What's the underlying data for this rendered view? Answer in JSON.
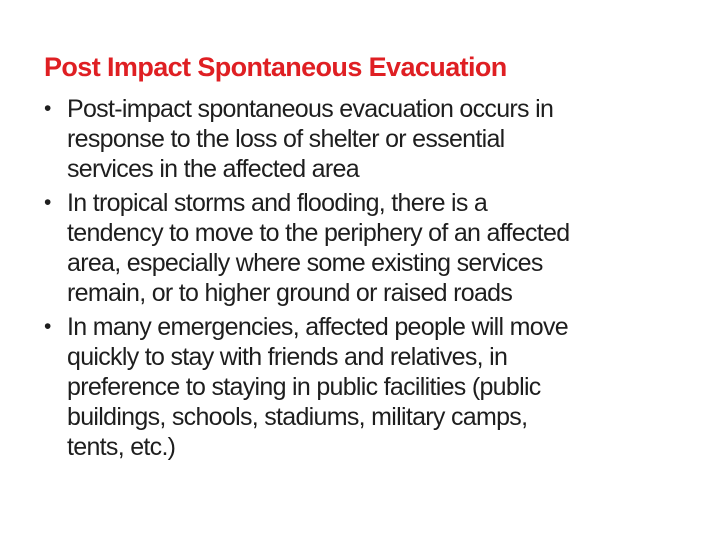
{
  "slide": {
    "title": "Post Impact Spontaneous Evacuation",
    "bullet_glyph": "•",
    "colors": {
      "title": "#df1f23",
      "body": "#1e1e1e",
      "background": "#ffffff"
    },
    "bullets": [
      {
        "text": "Post-impact spontaneous evacuation occurs in response to the loss of shelter or essential services in the affected area",
        "lines": [
          "Post-impact spontaneous evacuation occurs in",
          "response to the loss of shelter or essential",
          "services in the affected area"
        ]
      },
      {
        "text": "In tropical storms and flooding, there is a tendency to move to the periphery of an affected area, especially where some existing services remain, or to higher ground or raised roads",
        "lines": [
          "In tropical storms and flooding, there is a",
          "tendency to move to the periphery of an affected",
          "area, especially where some existing services",
          "remain, or to higher ground or raised roads"
        ]
      },
      {
        "text": "In many emergencies, affected people will move quickly to stay with friends and relatives, in preference to staying in public facilities (public buildings, schools, stadiums, military camps, tents, etc.)",
        "lines": [
          "In many emergencies, affected people will move",
          "quickly to stay with friends and relatives, in",
          "preference to staying in public facilities (public",
          "buildings, schools, stadiums, military camps,",
          "tents, etc.)"
        ]
      }
    ]
  }
}
